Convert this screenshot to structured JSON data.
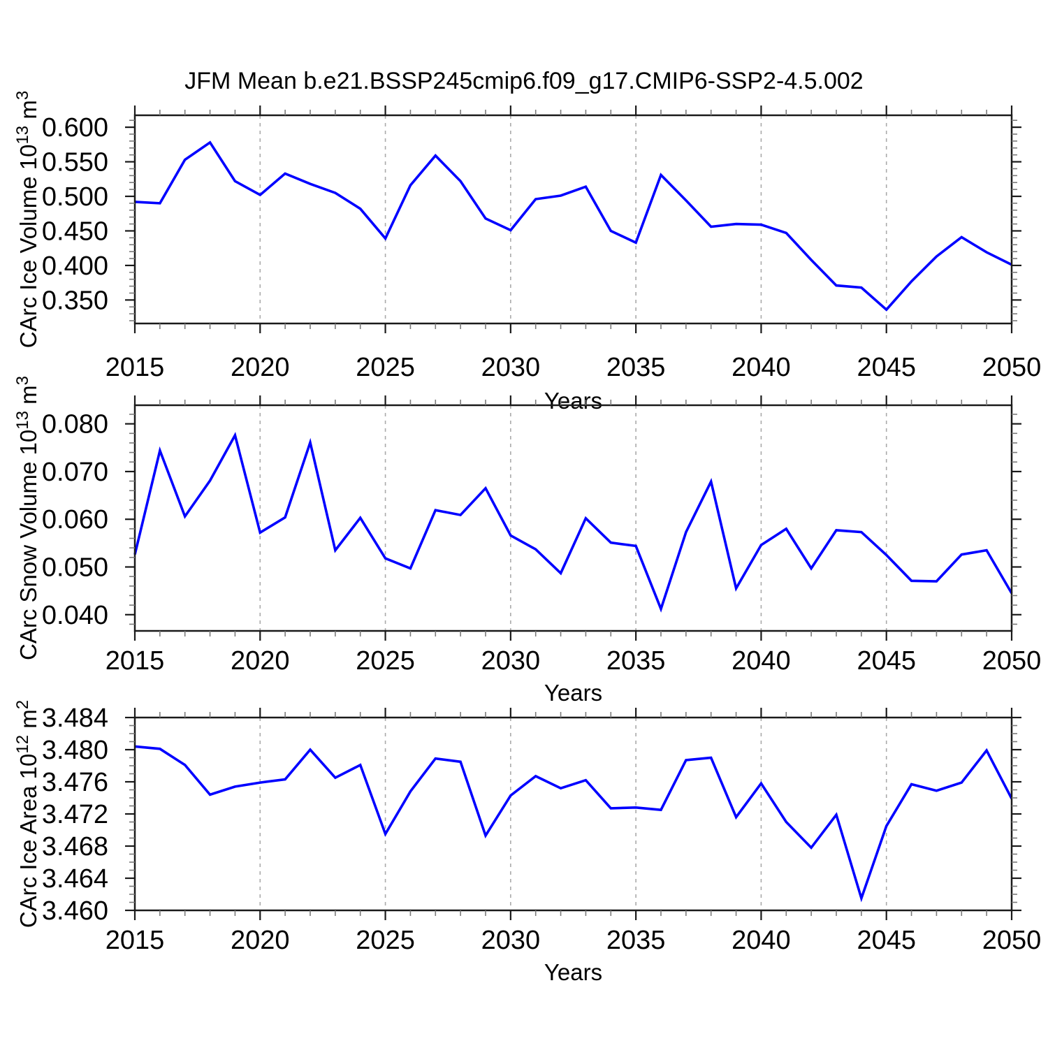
{
  "chart_data": {
    "type": "line",
    "suptitle": "JFM Mean b.e21.BSSP245cmip6.f09_g17.CMIP6-SSP2-4.5.002",
    "xlabel": "Years",
    "xlim": [
      2015,
      2050
    ],
    "x": [
      2015,
      2016,
      2017,
      2018,
      2019,
      2020,
      2021,
      2022,
      2023,
      2024,
      2025,
      2026,
      2027,
      2028,
      2029,
      2030,
      2031,
      2032,
      2033,
      2034,
      2035,
      2036,
      2037,
      2038,
      2039,
      2040,
      2041,
      2042,
      2043,
      2044,
      2045,
      2046,
      2047,
      2048,
      2049,
      2050
    ],
    "xticks": [
      2015,
      2020,
      2025,
      2030,
      2035,
      2040,
      2045,
      2050
    ],
    "xtick_labels": [
      "2015",
      "2020",
      "2025",
      "2030",
      "2035",
      "2040",
      "2045",
      "2050"
    ],
    "x_minor_step": 1,
    "grid_years": [
      2020,
      2025,
      2030,
      2035,
      2040,
      2045
    ],
    "grid_on": "vertical-dashed-only",
    "legend": "none",
    "line_color": "#0000ff",
    "grid_color": "#aaaaaa",
    "panels": [
      {
        "id": "ice-volume",
        "ylabel_text": "CArc Ice Volume 10^13 m^3",
        "ylabel_parts": [
          {
            "t": "CArc Ice Volume 10"
          },
          {
            "sup": "13"
          },
          {
            "t": " m"
          },
          {
            "sup": "3"
          }
        ],
        "ylim": [
          0.316,
          0.6173
        ],
        "yticks": [
          0.35,
          0.4,
          0.45,
          0.5,
          0.55,
          0.6
        ],
        "ytick_labels": [
          "0.350",
          "0.400",
          "0.450",
          "0.500",
          "0.550",
          "0.600"
        ],
        "y_minor_step": 0.01,
        "values": [
          0.492,
          0.49,
          0.553,
          0.578,
          0.522,
          0.502,
          0.533,
          0.518,
          0.505,
          0.482,
          0.439,
          0.516,
          0.559,
          0.522,
          0.468,
          0.451,
          0.496,
          0.501,
          0.514,
          0.45,
          0.433,
          0.531,
          0.494,
          0.456,
          0.46,
          0.459,
          0.447,
          0.408,
          0.371,
          0.368,
          0.336,
          0.377,
          0.413,
          0.441,
          0.419,
          0.401
        ]
      },
      {
        "id": "snow-volume",
        "ylabel_text": "CArc Snow Volume 10^13 m^3",
        "ylabel_parts": [
          {
            "t": "CArc Snow Volume 10"
          },
          {
            "sup": "13"
          },
          {
            "t": " m"
          },
          {
            "sup": "3"
          }
        ],
        "ylim": [
          0.0366,
          0.0839
        ],
        "yticks": [
          0.04,
          0.05,
          0.06,
          0.07,
          0.08
        ],
        "ytick_labels": [
          "0.040",
          "0.050",
          "0.060",
          "0.070",
          "0.080"
        ],
        "y_minor_step": 0.002,
        "values": [
          0.0526,
          0.0744,
          0.0606,
          0.0681,
          0.0776,
          0.0572,
          0.0604,
          0.0761,
          0.0535,
          0.0603,
          0.0518,
          0.0497,
          0.0619,
          0.0609,
          0.0665,
          0.0566,
          0.0537,
          0.0487,
          0.0602,
          0.0551,
          0.0544,
          0.0412,
          0.0573,
          0.0679,
          0.0455,
          0.0546,
          0.058,
          0.0497,
          0.0577,
          0.0573,
          0.0525,
          0.0471,
          0.047,
          0.0526,
          0.0535,
          0.0445
        ]
      },
      {
        "id": "ice-area",
        "ylabel_text": "CArc Ice Area 10^12 m^2",
        "ylabel_parts": [
          {
            "t": "CArc Ice Area 10"
          },
          {
            "sup": "12"
          },
          {
            "t": " m"
          },
          {
            "sup": "2"
          }
        ],
        "ylim": [
          3.46,
          3.484
        ],
        "yticks": [
          3.46,
          3.464,
          3.468,
          3.472,
          3.476,
          3.48,
          3.484
        ],
        "ytick_labels": [
          "3.460",
          "3.464",
          "3.468",
          "3.472",
          "3.476",
          "3.480",
          "3.484"
        ],
        "y_minor_step": 0.001,
        "values": [
          3.4804,
          3.4801,
          3.4781,
          3.4744,
          3.4754,
          3.4759,
          3.4763,
          3.48,
          3.4765,
          3.4781,
          3.4695,
          3.4748,
          3.4789,
          3.4785,
          3.4693,
          3.4743,
          3.4767,
          3.4752,
          3.4762,
          3.4727,
          3.4728,
          3.4725,
          3.4787,
          3.479,
          3.4716,
          3.4758,
          3.471,
          3.4678,
          3.4719,
          3.4615,
          3.4705,
          3.4757,
          3.4749,
          3.4759,
          3.4799,
          3.4739
        ]
      }
    ]
  }
}
